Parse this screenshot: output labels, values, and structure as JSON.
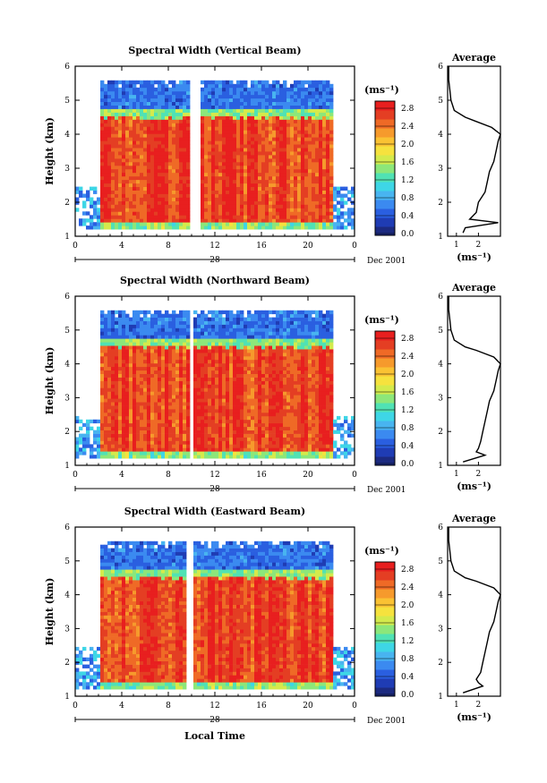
{
  "figure": {
    "x_ticks": [
      "0",
      "4",
      "8",
      "12",
      "16",
      "20",
      "0"
    ],
    "y_ticks": [
      "1",
      "2",
      "3",
      "4",
      "5",
      "6"
    ],
    "y_label": "Height (km)",
    "day_label": "28",
    "month_label": "Dec 2001",
    "x_label": "Local Time",
    "colorbar_unit": "(ms⁻¹)",
    "colorbar_ticks": [
      "0.0",
      "0.4",
      "0.8",
      "1.2",
      "1.6",
      "2.0",
      "2.4",
      "2.8"
    ],
    "profile_title": "Average",
    "profile_unit": "(ms⁻¹)",
    "palette": [
      "#1c2a80",
      "#1f3cb4",
      "#2a5fe0",
      "#3b8af0",
      "#48b4f0",
      "#3ed6e6",
      "#50e2b4",
      "#8ce77a",
      "#d4ea4c",
      "#f6e23e",
      "#fac233",
      "#f69a2c",
      "#ef6a26",
      "#e43e23",
      "#e81f1f"
    ]
  },
  "chart_data": [
    {
      "type": "heatmap",
      "title": "Spectral Width (Vertical Beam)",
      "x_unit": "Local Time (hours)",
      "x_range": [
        0,
        24
      ],
      "y_unit": "Height (km)",
      "y_range": [
        1,
        6
      ],
      "value_unit": "ms⁻¹",
      "value_range": [
        0.0,
        3.0
      ],
      "colorbar_ticks": [
        0.0,
        0.4,
        0.8,
        1.2,
        1.6,
        2.0,
        2.4,
        2.8
      ],
      "summary": {
        "low_layer_value": 2.7,
        "low_layer_top_km": 4.5,
        "upper_layer_value": 0.6,
        "data_top_km": 5.6,
        "data_bottom_km": 1.4,
        "gap_hours": [
          9.7,
          10.7
        ],
        "side_hours": [
          2.2,
          22.0
        ],
        "side_value": 0.8
      },
      "profile": {
        "title": "Average",
        "x_unit": "ms⁻¹",
        "x_range": [
          0.6,
          3.0
        ],
        "x_ticks": [
          1,
          2
        ],
        "heights_km": [
          1.1,
          1.25,
          1.4,
          1.5,
          1.7,
          2.0,
          2.3,
          2.6,
          2.9,
          3.2,
          3.5,
          3.8,
          4.0,
          4.2,
          4.4,
          4.5,
          4.7,
          5.0,
          5.3,
          5.6,
          6.0
        ],
        "values": [
          1.3,
          1.4,
          2.9,
          1.6,
          1.9,
          2.0,
          2.3,
          2.4,
          2.5,
          2.7,
          2.8,
          2.9,
          3.0,
          2.6,
          1.8,
          1.4,
          0.9,
          0.75,
          0.7,
          0.65,
          0.65
        ]
      }
    },
    {
      "type": "heatmap",
      "title": "Spectral Width (Northward Beam)",
      "x_unit": "Local Time (hours)",
      "x_range": [
        0,
        24
      ],
      "y_unit": "Height (km)",
      "y_range": [
        1,
        6
      ],
      "value_unit": "ms⁻¹",
      "value_range": [
        0.0,
        3.0
      ],
      "colorbar_ticks": [
        0.0,
        0.4,
        0.8,
        1.2,
        1.6,
        2.0,
        2.4,
        2.8
      ],
      "summary": {
        "low_layer_value": 2.7,
        "low_layer_top_km": 4.5,
        "upper_layer_value": 0.6,
        "data_top_km": 5.6,
        "data_bottom_km": 1.4,
        "gap_hours": [
          9.8,
          10.3
        ],
        "side_hours": [
          2.2,
          22.0
        ],
        "side_value": 0.8
      },
      "profile": {
        "title": "Average",
        "x_unit": "ms⁻¹",
        "x_range": [
          0.6,
          3.0
        ],
        "x_ticks": [
          1,
          2
        ],
        "heights_km": [
          1.1,
          1.3,
          1.4,
          1.5,
          1.7,
          2.0,
          2.3,
          2.6,
          2.9,
          3.2,
          3.5,
          3.8,
          4.0,
          4.2,
          4.4,
          4.5,
          4.7,
          5.0,
          5.3,
          5.6,
          6.0
        ],
        "values": [
          1.3,
          2.3,
          1.9,
          2.0,
          2.1,
          2.2,
          2.3,
          2.4,
          2.5,
          2.7,
          2.8,
          2.9,
          3.0,
          2.7,
          1.9,
          1.4,
          0.9,
          0.75,
          0.7,
          0.65,
          0.65
        ]
      }
    },
    {
      "type": "heatmap",
      "title": "Spectral Width (Eastward Beam)",
      "x_unit": "Local Time (hours)",
      "x_range": [
        0,
        24
      ],
      "y_unit": "Height (km)",
      "y_range": [
        1,
        6
      ],
      "value_unit": "ms⁻¹",
      "value_range": [
        0.0,
        3.0
      ],
      "colorbar_ticks": [
        0.0,
        0.4,
        0.8,
        1.2,
        1.6,
        2.0,
        2.4,
        2.8
      ],
      "summary": {
        "low_layer_value": 2.7,
        "low_layer_top_km": 4.5,
        "upper_layer_value": 0.6,
        "data_top_km": 5.6,
        "data_bottom_km": 1.4,
        "gap_hours": [
          9.6,
          10.3
        ],
        "side_hours": [
          2.2,
          22.0
        ],
        "side_value": 0.8
      },
      "profile": {
        "title": "Average",
        "x_unit": "ms⁻¹",
        "x_range": [
          0.6,
          3.0
        ],
        "x_ticks": [
          1,
          2
        ],
        "heights_km": [
          1.1,
          1.3,
          1.4,
          1.5,
          1.7,
          2.0,
          2.3,
          2.6,
          2.9,
          3.2,
          3.5,
          3.8,
          4.0,
          4.2,
          4.4,
          4.5,
          4.7,
          5.0,
          5.3,
          5.6,
          6.0
        ],
        "values": [
          1.3,
          2.2,
          2.0,
          1.9,
          2.1,
          2.2,
          2.3,
          2.4,
          2.5,
          2.7,
          2.8,
          2.9,
          3.0,
          2.7,
          1.9,
          1.4,
          0.9,
          0.75,
          0.7,
          0.65,
          0.65
        ]
      }
    }
  ]
}
